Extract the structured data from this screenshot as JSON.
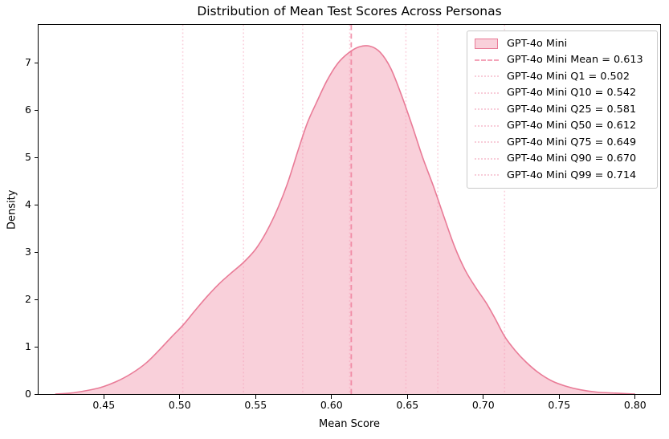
{
  "chart_data": {
    "type": "area",
    "subtype": "kde-density",
    "title": "Distribution of Mean Test Scores Across Personas",
    "xlabel": "Mean Score",
    "ylabel": "Density",
    "xlim": [
      0.407,
      0.8165
    ],
    "ylim": [
      0,
      7.797
    ],
    "grid": false,
    "legend_position": "upper-right",
    "x_ticks": [
      {
        "value": 0.45,
        "label": "0.45"
      },
      {
        "value": 0.5,
        "label": "0.50"
      },
      {
        "value": 0.55,
        "label": "0.55"
      },
      {
        "value": 0.6,
        "label": "0.60"
      },
      {
        "value": 0.65,
        "label": "0.65"
      },
      {
        "value": 0.7,
        "label": "0.70"
      },
      {
        "value": 0.75,
        "label": "0.75"
      },
      {
        "value": 0.8,
        "label": "0.80"
      }
    ],
    "y_ticks": [
      {
        "value": 0,
        "label": "0"
      },
      {
        "value": 1,
        "label": "1"
      },
      {
        "value": 2,
        "label": "2"
      },
      {
        "value": 3,
        "label": "3"
      },
      {
        "value": 4,
        "label": "4"
      },
      {
        "value": 5,
        "label": "5"
      },
      {
        "value": 6,
        "label": "6"
      },
      {
        "value": 7,
        "label": "7"
      }
    ],
    "series": [
      {
        "name": "GPT-4o Mini",
        "line_color": "#e97b97",
        "fill_color": "#f9d0da",
        "points": [
          [
            0.418,
            0.0
          ],
          [
            0.428,
            0.02
          ],
          [
            0.438,
            0.07
          ],
          [
            0.448,
            0.14
          ],
          [
            0.458,
            0.26
          ],
          [
            0.468,
            0.43
          ],
          [
            0.478,
            0.66
          ],
          [
            0.488,
            0.98
          ],
          [
            0.495,
            1.22
          ],
          [
            0.502,
            1.45
          ],
          [
            0.51,
            1.76
          ],
          [
            0.518,
            2.06
          ],
          [
            0.526,
            2.33
          ],
          [
            0.534,
            2.56
          ],
          [
            0.542,
            2.78
          ],
          [
            0.55,
            3.06
          ],
          [
            0.557,
            3.42
          ],
          [
            0.564,
            3.88
          ],
          [
            0.571,
            4.45
          ],
          [
            0.578,
            5.15
          ],
          [
            0.584,
            5.72
          ],
          [
            0.59,
            6.15
          ],
          [
            0.597,
            6.62
          ],
          [
            0.604,
            6.98
          ],
          [
            0.611,
            7.2
          ],
          [
            0.618,
            7.33
          ],
          [
            0.625,
            7.35
          ],
          [
            0.632,
            7.22
          ],
          [
            0.639,
            6.88
          ],
          [
            0.646,
            6.32
          ],
          [
            0.653,
            5.68
          ],
          [
            0.66,
            5.0
          ],
          [
            0.667,
            4.4
          ],
          [
            0.674,
            3.75
          ],
          [
            0.681,
            3.12
          ],
          [
            0.688,
            2.62
          ],
          [
            0.695,
            2.25
          ],
          [
            0.702,
            1.92
          ],
          [
            0.708,
            1.58
          ],
          [
            0.714,
            1.22
          ],
          [
            0.721,
            0.92
          ],
          [
            0.728,
            0.68
          ],
          [
            0.736,
            0.46
          ],
          [
            0.745,
            0.28
          ],
          [
            0.754,
            0.17
          ],
          [
            0.764,
            0.09
          ],
          [
            0.775,
            0.04
          ],
          [
            0.787,
            0.02
          ],
          [
            0.8,
            0.0
          ]
        ]
      }
    ],
    "stats": {
      "mean": 0.613,
      "q1": 0.502,
      "q10": 0.542,
      "q25": 0.581,
      "q50": 0.612,
      "q75": 0.649,
      "q90": 0.67,
      "q99": 0.714
    },
    "vlines": [
      {
        "x": 0.613,
        "style": "dashed",
        "color": "rgba(238,121,151,0.78)",
        "legend_color": "#f4a3b8",
        "label": "GPT-4o Mini Mean = 0.613"
      },
      {
        "x": 0.502,
        "style": "dotted",
        "color": "rgba(244,154,180,0.45)",
        "legend_color": "#f8cdd9",
        "label": "GPT-4o Mini Q1 = 0.502"
      },
      {
        "x": 0.542,
        "style": "dotted",
        "color": "rgba(244,154,180,0.45)",
        "legend_color": "#f8cdd9",
        "label": "GPT-4o Mini Q10 = 0.542"
      },
      {
        "x": 0.581,
        "style": "dotted",
        "color": "rgba(244,154,180,0.45)",
        "legend_color": "#f8cdd9",
        "label": "GPT-4o Mini Q25 = 0.581"
      },
      {
        "x": 0.612,
        "style": "dotted",
        "color": "rgba(244,154,180,0.45)",
        "legend_color": "#f8cdd9",
        "label": "GPT-4o Mini Q50 = 0.612"
      },
      {
        "x": 0.649,
        "style": "dotted",
        "color": "rgba(244,154,180,0.45)",
        "legend_color": "#f8cdd9",
        "label": "GPT-4o Mini Q75 = 0.649"
      },
      {
        "x": 0.67,
        "style": "dotted",
        "color": "rgba(244,154,180,0.45)",
        "legend_color": "#f8cdd9",
        "label": "GPT-4o Mini Q90 = 0.670"
      },
      {
        "x": 0.714,
        "style": "dotted",
        "color": "rgba(244,154,180,0.45)",
        "legend_color": "#f8cdd9",
        "label": "GPT-4o Mini Q99 = 0.714"
      }
    ],
    "colors": {
      "spine": "#000000",
      "legend_border": "#c9c9c9",
      "background": "#ffffff"
    }
  }
}
